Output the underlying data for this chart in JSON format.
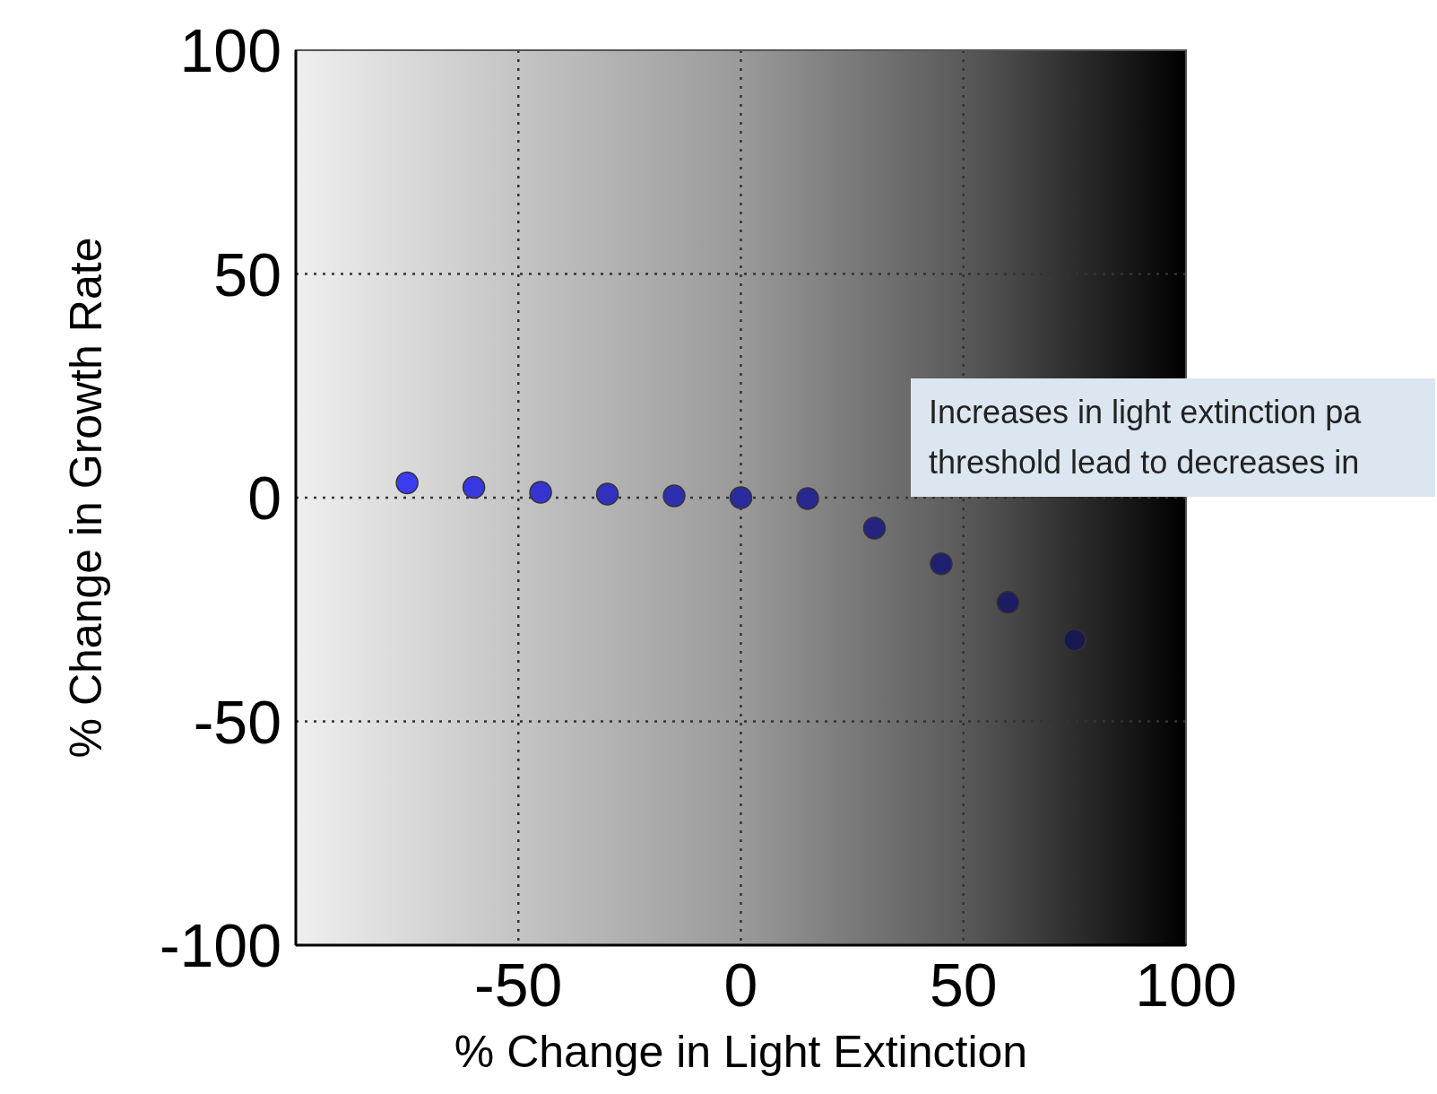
{
  "chart_data": {
    "type": "scatter",
    "xlabel": "% Change in Light Extinction",
    "ylabel": "% Change in Growth Rate",
    "x": [
      -75,
      -60,
      -45,
      -30,
      -15,
      0,
      15,
      30,
      45,
      60,
      75
    ],
    "series": [
      {
        "values": [
          3.3,
          2.3,
          1.2,
          0.8,
          0.4,
          0,
          -0.2,
          -6.8,
          -14.8,
          -23.4,
          -31.8
        ],
        "colors": [
          "#3b3bf0",
          "#3838e0",
          "#3434d0",
          "#3131c0",
          "#2e2eb0",
          "#2b2ba0",
          "#282890",
          "#242480",
          "#202070",
          "#1c1c60",
          "#181850"
        ]
      }
    ],
    "xlim": [
      -100,
      100
    ],
    "xticks": [
      -50,
      0,
      50,
      100
    ],
    "ylim": [
      -100,
      100
    ],
    "yticks": [
      -100,
      -50,
      0,
      50,
      100
    ],
    "grid": true,
    "marker": "circle",
    "annotations": [
      "Increases in light extinction pa\nthreshold lead to decreases in"
    ]
  }
}
